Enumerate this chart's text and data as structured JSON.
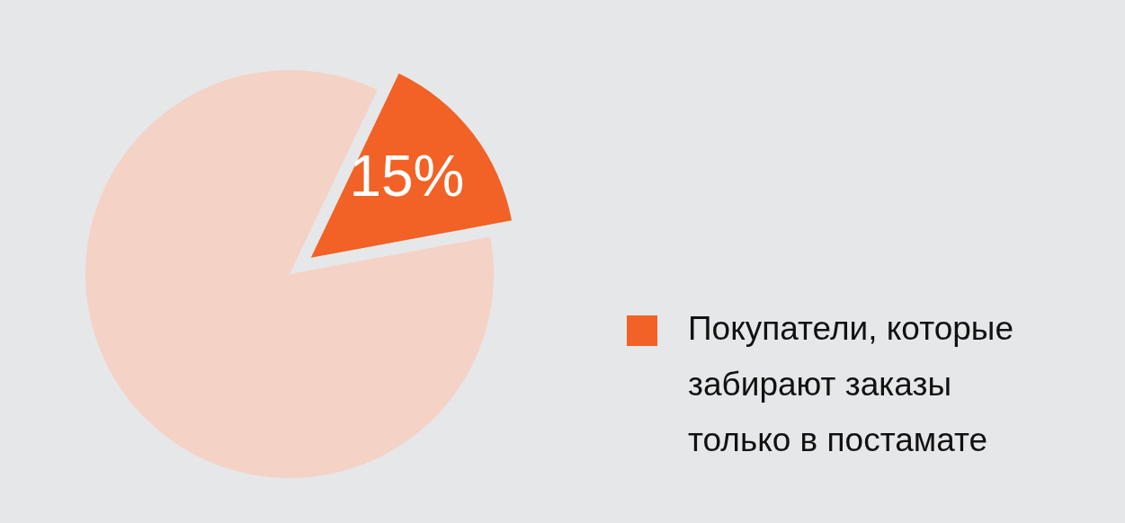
{
  "chart_data": {
    "type": "pie",
    "categories": [
      "Покупатели, которые забирают заказы только в постамате",
      null
    ],
    "values": [
      15,
      85
    ],
    "colors": [
      "#f26125",
      "#f5d2c6"
    ],
    "value_labels": [
      "15%",
      null
    ],
    "legend": "right"
  }
}
